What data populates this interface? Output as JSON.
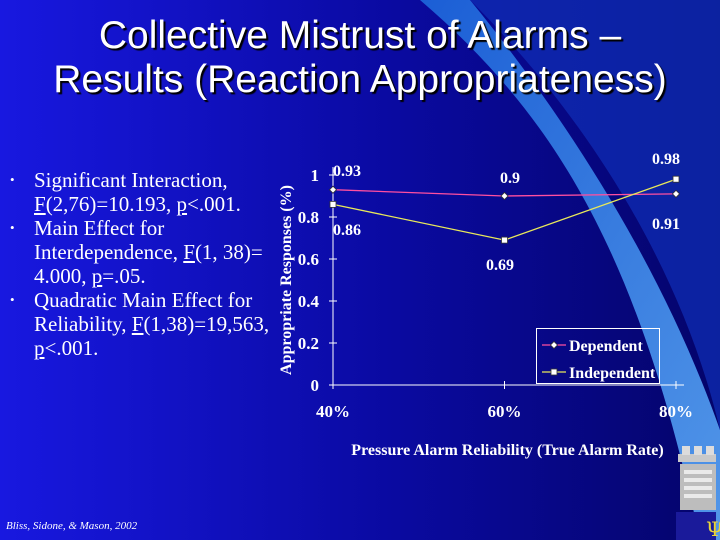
{
  "slide": {
    "title_line1": "Collective Mistrust of Alarms –",
    "title_line2": "Results (Reaction Appropriateness)",
    "citation": "Bliss, Sidone, & Mason, 2002"
  },
  "bullets": [
    {
      "a": "Significant Interaction, ",
      "b": "F",
      "c": "(2,76)=10.193, ",
      "d": "p",
      "e": "<.001."
    },
    {
      "a": "Main Effect for Interdependence, ",
      "b": "F",
      "c": "(1, 38)= 4.000, ",
      "d": "p",
      "e": "=.05."
    },
    {
      "a": "Quadratic Main Effect for Reliability, ",
      "b": "F",
      "c": "(1,38)=19,563, ",
      "d": "p",
      "e": "<.001."
    }
  ],
  "colors": {
    "background": "#0a0a8a",
    "dependent": "#ff4fa0",
    "independent": "#e8e85a",
    "text": "#ffffff"
  },
  "icons": {
    "logo": "shield-psi-icon",
    "bullet": "bullet-dot-icon"
  },
  "chart_data": {
    "type": "line",
    "xlabel": "Pressure Alarm Reliability (True Alarm Rate)",
    "ylabel": "Appropriate Responses (%)",
    "categories": [
      "40%",
      "60%",
      "80%"
    ],
    "ylim": [
      0,
      1
    ],
    "yticks": [
      "0",
      "0.2",
      "0.4",
      "0.6",
      "0.8",
      "1"
    ],
    "ytick_values": [
      0,
      0.2,
      0.4,
      0.6,
      0.8,
      1.0
    ],
    "legend_position": "bottom-right",
    "series": [
      {
        "name": "Dependent",
        "marker": "diamond",
        "values": [
          0.93,
          0.9,
          0.91
        ],
        "labels": [
          "0.93",
          "0.9",
          "0.91"
        ]
      },
      {
        "name": "Independent",
        "marker": "square",
        "values": [
          0.86,
          0.69,
          0.98
        ],
        "labels": [
          "0.86",
          "0.69",
          "0.98"
        ]
      }
    ]
  }
}
